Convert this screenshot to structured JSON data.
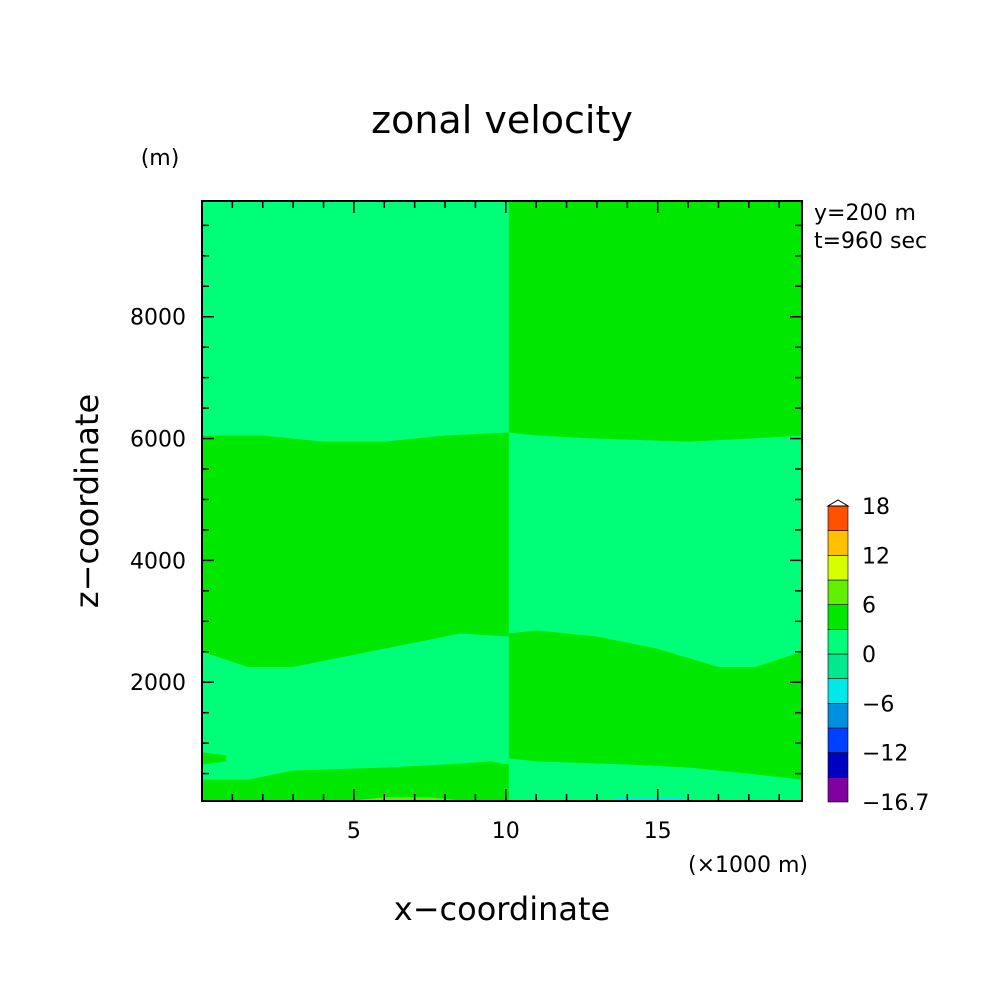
{
  "chart_data": {
    "type": "heatmap",
    "title": "zonal velocity",
    "xlabel": "x−coordinate",
    "ylabel": "z−coordinate",
    "x_unit": "(×1000 m)",
    "y_unit": "(m)",
    "annotations": [
      "y=200 m",
      "t=960 sec"
    ],
    "xlim": [
      0,
      19.75
    ],
    "ylim": [
      50,
      9900
    ],
    "x_ticks": [
      {
        "value": 5,
        "label": "5"
      },
      {
        "value": 10,
        "label": "10"
      },
      {
        "value": 15,
        "label": "15"
      }
    ],
    "y_ticks": [
      {
        "value": 2000,
        "label": "2000"
      },
      {
        "value": 4000,
        "label": "4000"
      },
      {
        "value": 6000,
        "label": "6000"
      },
      {
        "value": 8000,
        "label": "8000"
      }
    ],
    "colorbar": {
      "levels": [
        -16.7,
        -15,
        -12,
        -9,
        -6,
        -3,
        0,
        3,
        6,
        9,
        12,
        15,
        18
      ],
      "labeled_levels": [
        {
          "value": 18,
          "label": "18"
        },
        {
          "value": 12,
          "label": "12"
        },
        {
          "value": 6,
          "label": "6"
        },
        {
          "value": 0,
          "label": "0"
        },
        {
          "value": -6,
          "label": "−6"
        },
        {
          "value": -12,
          "label": "−12"
        },
        {
          "value": -16.7,
          "label": "−16.7"
        }
      ],
      "colors": [
        "#8000a0",
        "#0000c0",
        "#0040ff",
        "#0090e0",
        "#00e8e8",
        "#00e890",
        "#00ff78",
        "#00e800",
        "#60f000",
        "#d8ff00",
        "#ffc000",
        "#ff5000",
        "#ff2020"
      ]
    },
    "background_color": "#00ff78",
    "regions": [
      {
        "name": "band-x-lt-10-z-3-6k",
        "value": 1.5,
        "color": "#00e800",
        "bottom": [
          [
            0,
            2500
          ],
          [
            1.5,
            2250
          ],
          [
            3,
            2250
          ],
          [
            5,
            2450
          ],
          [
            7,
            2650
          ],
          [
            8.5,
            2800
          ],
          [
            10.1,
            2750
          ]
        ],
        "top": [
          [
            0,
            6050
          ],
          [
            2,
            6050
          ],
          [
            4,
            5950
          ],
          [
            6,
            5950
          ],
          [
            8,
            6050
          ],
          [
            10.1,
            6100
          ]
        ]
      },
      {
        "name": "band-x-gt-10-top",
        "value": 1.5,
        "color": "#00e800",
        "bottom": [
          [
            10.1,
            6100
          ],
          [
            11,
            6050
          ],
          [
            13,
            6000
          ],
          [
            16,
            5950
          ],
          [
            18,
            6000
          ],
          [
            19.75,
            6050
          ]
        ],
        "top": [
          [
            10.1,
            9900
          ],
          [
            19.75,
            9900
          ]
        ]
      },
      {
        "name": "band-x-gt-10-low",
        "value": 1.5,
        "color": "#00e800",
        "bottom": [
          [
            10.1,
            750
          ],
          [
            11,
            700
          ],
          [
            14,
            650
          ],
          [
            16,
            600
          ],
          [
            18,
            500
          ],
          [
            19.75,
            400
          ]
        ],
        "top": [
          [
            10.1,
            2800
          ],
          [
            11,
            2850
          ],
          [
            13,
            2750
          ],
          [
            15,
            2550
          ],
          [
            17,
            2250
          ],
          [
            18.2,
            2250
          ],
          [
            19.75,
            2500
          ]
        ]
      },
      {
        "name": "band-bottom-left",
        "value": 1.5,
        "color": "#00e800",
        "bottom": [
          [
            0,
            50
          ],
          [
            10.1,
            50
          ]
        ],
        "top": [
          [
            0,
            400
          ],
          [
            1.5,
            400
          ],
          [
            3,
            550
          ],
          [
            6,
            600
          ],
          [
            8,
            650
          ],
          [
            9.5,
            700
          ],
          [
            10.1,
            650
          ]
        ]
      },
      {
        "name": "patch-left-edge",
        "value": 1.5,
        "color": "#00e800",
        "bottom": [
          [
            0,
            650
          ],
          [
            0.8,
            700
          ]
        ],
        "top": [
          [
            0,
            850
          ],
          [
            0.8,
            800
          ]
        ]
      },
      {
        "name": "patch-right-edge",
        "value": 1.5,
        "color": "#00e800",
        "bottom": [
          [
            19.2,
            750
          ],
          [
            19.75,
            700
          ]
        ],
        "top": [
          [
            19.2,
            800
          ],
          [
            19.75,
            850
          ]
        ]
      },
      {
        "name": "patch-bottom-yellowgreen",
        "value": 4.5,
        "color": "#60f000",
        "bottom": [
          [
            5,
            50
          ],
          [
            8.5,
            50
          ]
        ],
        "top": [
          [
            5,
            60
          ],
          [
            6,
            110
          ],
          [
            7.5,
            110
          ],
          [
            8.5,
            60
          ]
        ]
      },
      {
        "name": "patch-bottom-cyan",
        "value": -3.5,
        "color": "#00e8e8",
        "bottom": [
          [
            13,
            50
          ],
          [
            16.3,
            50
          ]
        ],
        "top": [
          [
            13,
            60
          ],
          [
            14,
            110
          ],
          [
            15.5,
            110
          ],
          [
            16.3,
            60
          ]
        ]
      }
    ]
  }
}
